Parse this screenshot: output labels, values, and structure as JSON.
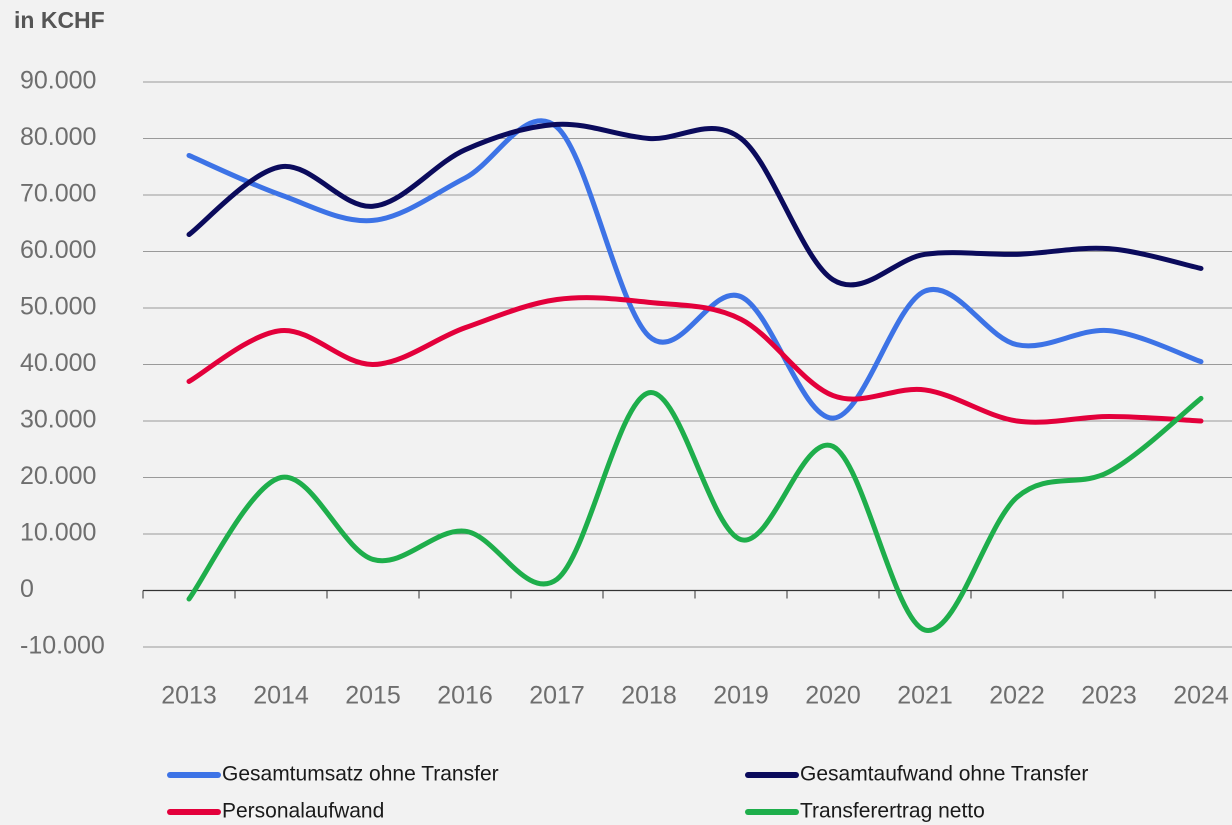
{
  "chart_data": {
    "type": "line",
    "title": "in KCHF",
    "categories": [
      "2013",
      "2014",
      "2015",
      "2016",
      "2017",
      "2018",
      "2019",
      "2020",
      "2021",
      "2022",
      "2023",
      "2024"
    ],
    "series": [
      {
        "name": "Gesamtumsatz ohne Transfer",
        "color": "#3d73e6",
        "values": [
          77000,
          70000,
          65500,
          73000,
          82000,
          45000,
          52000,
          30500,
          53000,
          43500,
          46000,
          40500
        ]
      },
      {
        "name": "Gesamtaufwand ohne Transfer",
        "color": "#0b0b5c",
        "values": [
          63000,
          75000,
          68000,
          78000,
          82500,
          80000,
          80000,
          55000,
          59500,
          59500,
          60500,
          57000
        ]
      },
      {
        "name": "Personalaufwand",
        "color": "#e3003b",
        "values": [
          37000,
          46000,
          40000,
          46500,
          51500,
          51000,
          48000,
          34500,
          35500,
          30000,
          30800,
          30000
        ]
      },
      {
        "name": "Transferertrag netto",
        "color": "#1eae4b",
        "values": [
          -1500,
          20000,
          5500,
          10500,
          2000,
          35000,
          9000,
          25500,
          -7000,
          16500,
          21000,
          34000
        ]
      }
    ],
    "ylim": [
      -10000,
      90000
    ],
    "yticks": [
      {
        "value": -10000,
        "label": "-10.000"
      },
      0,
      {
        "value": 10000,
        "label": "10.000"
      },
      {
        "value": 20000,
        "label": "20.000"
      },
      {
        "value": 30000,
        "label": "30.000"
      },
      {
        "value": 40000,
        "label": "40.000"
      },
      {
        "value": 50000,
        "label": "50.000"
      },
      {
        "value": 60000,
        "label": "60.000"
      },
      {
        "value": 70000,
        "label": "70.000"
      },
      {
        "value": 80000,
        "label": "80.000"
      },
      {
        "value": 90000,
        "label": "90.000"
      }
    ],
    "grid": true,
    "smooth": true,
    "legend": "bottom"
  }
}
